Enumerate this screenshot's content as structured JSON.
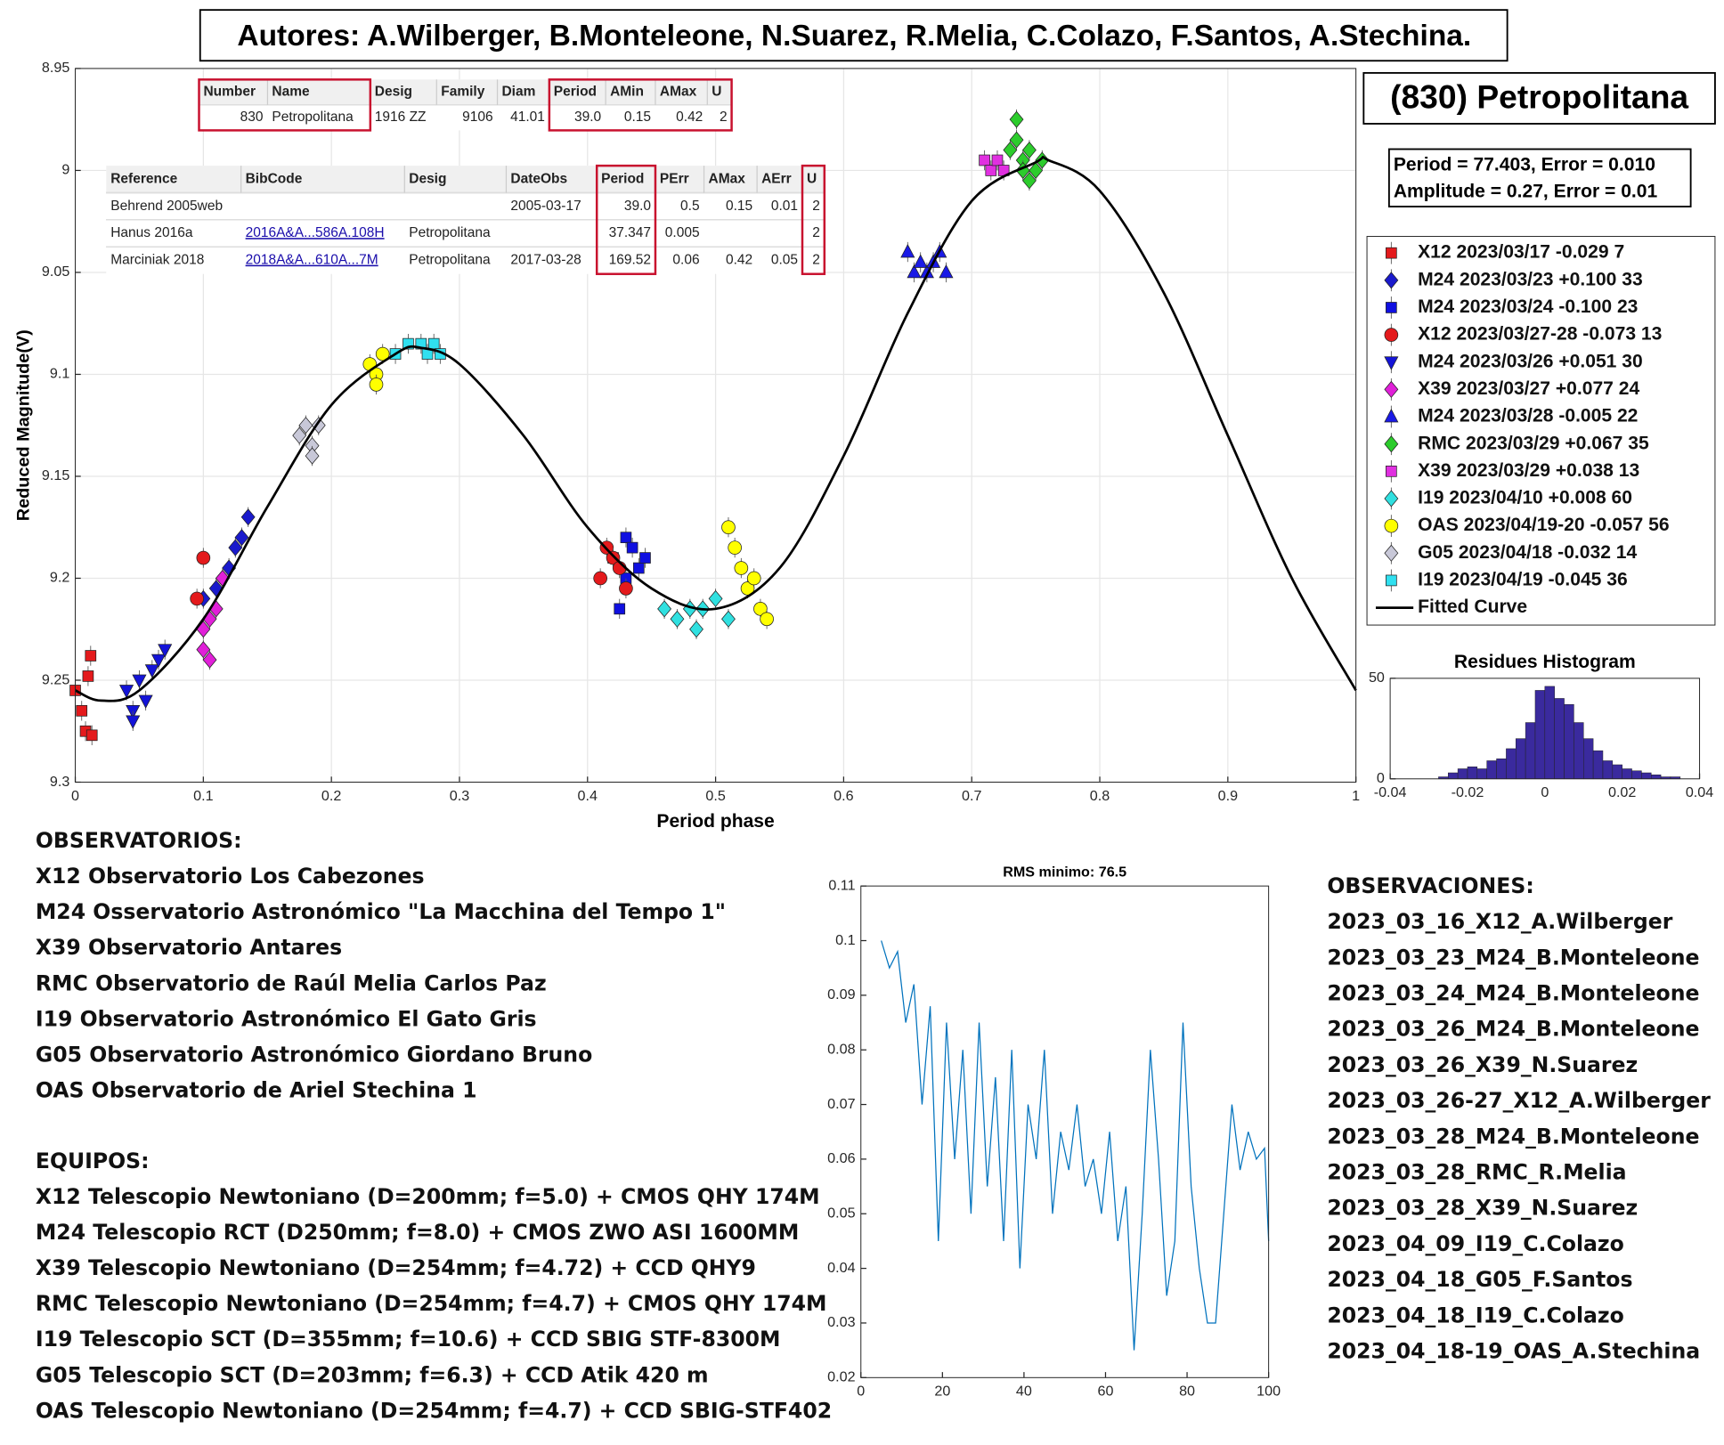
{
  "header": {
    "authors": "Autores: A.Wilberger, B.Monteleone, N.Suarez, R.Melia, C.Colazo, F.Santos, A.Stechina."
  },
  "object": {
    "name": "(830) Petropolitana",
    "fit": [
      "Period =  77.403, Error = 0.010",
      "Amplitude = 0.27, Error = 0.01"
    ]
  },
  "tables": [
    {
      "header": [
        "Number",
        "Name",
        "Desig",
        "Family",
        "Diam",
        "Period",
        "AMin",
        "AMax",
        "U"
      ],
      "rows": [
        [
          "830",
          "Petropolitana",
          "1916 ZZ",
          "9106",
          "41.01",
          "39.0",
          "0.15",
          "0.42",
          "2"
        ]
      ]
    },
    {
      "header": [
        "Reference",
        "BibCode",
        "Desig",
        "DateObs",
        "Period",
        "PErr",
        "AMax",
        "AErr",
        "U"
      ],
      "rows": [
        [
          "Behrend 2005web",
          "",
          "",
          "2005-03-17",
          "39.0",
          "0.5",
          "0.15",
          "0.01",
          "2"
        ],
        [
          "Hanus 2016a",
          "2016A&A...586A.108H",
          "Petropolitana",
          "",
          "37.347",
          "0.005",
          "",
          "",
          "2"
        ],
        [
          "Marciniak 2018",
          "2018A&A...610A...7M",
          "Petropolitana",
          "2017-03-28",
          "169.52",
          "0.06",
          "0.42",
          "0.05",
          "2"
        ]
      ]
    }
  ],
  "chart_data": [
    {
      "type": "scatter",
      "ylabel": "Reduced Magnitude(V)",
      "xlabel": "Period phase",
      "xlim": [
        0,
        1
      ],
      "ylim": [
        8.95,
        9.3
      ],
      "y_reversed": true,
      "grid": true,
      "legend": "right",
      "xticks": [
        0,
        0.1,
        0.2,
        0.3,
        0.4,
        0.5,
        0.6,
        0.7,
        0.8,
        0.9,
        1
      ],
      "yticks": [
        8.95,
        9,
        9.05,
        9.1,
        9.15,
        9.2,
        9.25,
        9.3
      ],
      "series": [
        {
          "name": "X12 2023/03/17 -0.029 7",
          "color": "#e41a1c",
          "marker": "s",
          "x": [
            0.0,
            0.005,
            0.008,
            0.01,
            0.012,
            0.013
          ],
          "values": [
            9.255,
            9.265,
            9.275,
            9.248,
            9.238,
            9.277
          ]
        },
        {
          "name": "M24 2023/03/23 +0.100 33",
          "color": "#1a1acc",
          "marker": "d",
          "x": [
            0.1,
            0.11,
            0.115,
            0.12,
            0.125,
            0.13,
            0.135
          ],
          "values": [
            9.21,
            9.205,
            9.2,
            9.195,
            9.185,
            9.18,
            9.17
          ]
        },
        {
          "name": "M24 2023/03/24 -0.100 23",
          "color": "#1010e0",
          "marker": "s",
          "x": [
            0.42,
            0.425,
            0.43,
            0.43,
            0.435,
            0.44,
            0.445
          ],
          "values": [
            9.19,
            9.215,
            9.2,
            9.18,
            9.185,
            9.195,
            9.19
          ]
        },
        {
          "name": "X12 2023/03/27-28 -0.073 13",
          "color": "#e41a1c",
          "marker": "o",
          "x": [
            0.095,
            0.1,
            0.41,
            0.415,
            0.42,
            0.425,
            0.43
          ],
          "values": [
            9.21,
            9.19,
            9.2,
            9.185,
            9.19,
            9.195,
            9.205
          ]
        },
        {
          "name": "M24 2023/03/26 +0.051 30",
          "color": "#1414d8",
          "marker": "v",
          "x": [
            0.04,
            0.045,
            0.045,
            0.05,
            0.055,
            0.06,
            0.065,
            0.07
          ],
          "values": [
            9.255,
            9.265,
            9.27,
            9.25,
            9.26,
            9.245,
            9.24,
            9.235
          ]
        },
        {
          "name": "X39 2023/03/27 +0.077 24",
          "color": "#e020d8",
          "marker": "d",
          "x": [
            0.1,
            0.1,
            0.105,
            0.105,
            0.11,
            0.115
          ],
          "values": [
            9.225,
            9.235,
            9.22,
            9.24,
            9.215,
            9.2
          ]
        },
        {
          "name": "M24 2023/03/28 -0.005 22",
          "color": "#1a1ae6",
          "marker": "^",
          "x": [
            0.65,
            0.655,
            0.66,
            0.665,
            0.67,
            0.675,
            0.68
          ],
          "values": [
            9.04,
            9.05,
            9.045,
            9.05,
            9.045,
            9.04,
            9.05
          ]
        },
        {
          "name": "RMC 2023/03/29 +0.067 35",
          "color": "#2ccc2c",
          "marker": "d",
          "x": [
            0.73,
            0.735,
            0.735,
            0.74,
            0.74,
            0.745,
            0.745,
            0.75,
            0.755
          ],
          "values": [
            8.99,
            8.985,
            8.975,
            8.995,
            9.0,
            8.99,
            9.005,
            9.0,
            8.995
          ]
        },
        {
          "name": "X39 2023/03/29 +0.038 13",
          "color": "#e030e0",
          "marker": "s",
          "x": [
            0.71,
            0.715,
            0.72,
            0.725
          ],
          "values": [
            8.995,
            9.0,
            8.995,
            9.0
          ]
        },
        {
          "name": "I19 2023/04/10 +0.008 60",
          "color": "#30e0e0",
          "marker": "d",
          "x": [
            0.46,
            0.47,
            0.48,
            0.485,
            0.49,
            0.5,
            0.51
          ],
          "values": [
            9.215,
            9.22,
            9.215,
            9.225,
            9.215,
            9.21,
            9.22
          ]
        },
        {
          "name": "OAS 2023/04/19-20 -0.057 56",
          "color": "#ffff00",
          "marker": "o",
          "x": [
            0.23,
            0.235,
            0.235,
            0.24,
            0.51,
            0.515,
            0.52,
            0.525,
            0.53,
            0.535,
            0.54
          ],
          "values": [
            9.095,
            9.1,
            9.105,
            9.09,
            9.175,
            9.185,
            9.195,
            9.205,
            9.2,
            9.215,
            9.22
          ]
        },
        {
          "name": "G05 2023/04/18 -0.032 14",
          "color": "#c8c8d8",
          "marker": "d",
          "x": [
            0.175,
            0.18,
            0.185,
            0.185,
            0.19
          ],
          "values": [
            9.13,
            9.125,
            9.135,
            9.14,
            9.125
          ]
        },
        {
          "name": "I19 2023/04/19 -0.045 36",
          "color": "#30e0f0",
          "marker": "s",
          "x": [
            0.25,
            0.26,
            0.27,
            0.275,
            0.28,
            0.285
          ],
          "values": [
            9.09,
            9.085,
            9.085,
            9.09,
            9.085,
            9.09
          ]
        },
        {
          "name": "Fitted Curve",
          "color": "#000000",
          "marker": "line",
          "x": [
            0,
            0.02,
            0.05,
            0.1,
            0.15,
            0.2,
            0.25,
            0.27,
            0.3,
            0.35,
            0.4,
            0.45,
            0.5,
            0.55,
            0.6,
            0.65,
            0.7,
            0.75,
            0.76,
            0.8,
            0.85,
            0.9,
            0.95,
            1
          ],
          "values": [
            9.255,
            9.26,
            9.255,
            9.22,
            9.165,
            9.115,
            9.09,
            9.087,
            9.095,
            9.13,
            9.175,
            9.205,
            9.215,
            9.195,
            9.14,
            9.07,
            9.015,
            8.996,
            8.995,
            9.01,
            9.06,
            9.13,
            9.2,
            9.255
          ]
        }
      ]
    },
    {
      "type": "histogram",
      "title": "Residues Histogram",
      "color": "#3a2a9e",
      "bins": [
        -0.0275,
        -0.025,
        -0.0225,
        -0.02,
        -0.0175,
        -0.015,
        -0.0125,
        -0.01,
        -0.0075,
        -0.005,
        -0.0025,
        0,
        0.0025,
        0.005,
        0.0075,
        0.01,
        0.0125,
        0.015,
        0.0175,
        0.02,
        0.0225,
        0.025,
        0.0275,
        0.03,
        0.0325,
        0.035
      ],
      "values": [
        1,
        3,
        5,
        6,
        5,
        9,
        10,
        15,
        20,
        28,
        44,
        46,
        40,
        37,
        28,
        20,
        14,
        9,
        7,
        5,
        4,
        3,
        2,
        1,
        1
      ],
      "xlim": [
        -0.04,
        0.04
      ],
      "ylim": [
        0,
        50
      ],
      "xticks": [
        -0.04,
        -0.02,
        0,
        0.02,
        0.04
      ],
      "yticks": [
        0,
        50
      ],
      "grid": false
    },
    {
      "type": "line",
      "title": "RMS minimo: 76.5",
      "color": "#0072bd",
      "grid": false,
      "x": [
        5,
        7,
        9,
        11,
        13,
        15,
        17,
        19,
        21,
        23,
        25,
        27,
        29,
        31,
        33,
        35,
        37,
        39,
        41,
        43,
        45,
        47,
        49,
        51,
        53,
        55,
        57,
        59,
        61,
        63,
        65,
        67,
        69,
        71,
        73,
        75,
        77,
        79,
        81,
        83,
        85,
        87,
        89,
        91,
        93,
        95,
        97,
        99,
        100
      ],
      "values": [
        0.1,
        0.095,
        0.098,
        0.085,
        0.092,
        0.07,
        0.088,
        0.045,
        0.085,
        0.06,
        0.08,
        0.05,
        0.085,
        0.055,
        0.075,
        0.045,
        0.08,
        0.04,
        0.07,
        0.06,
        0.08,
        0.05,
        0.065,
        0.058,
        0.07,
        0.055,
        0.06,
        0.05,
        0.065,
        0.045,
        0.055,
        0.025,
        0.05,
        0.08,
        0.06,
        0.035,
        0.045,
        0.085,
        0.055,
        0.04,
        0.03,
        0.03,
        0.05,
        0.07,
        0.058,
        0.065,
        0.06,
        0.062,
        0.045
      ],
      "xlim": [
        0,
        100
      ],
      "ylim": [
        0.02,
        0.11
      ],
      "xticks": [
        0,
        20,
        40,
        60,
        80,
        100
      ],
      "yticks": [
        0.02,
        0.03,
        0.04,
        0.05,
        0.06,
        0.07,
        0.08,
        0.09,
        0.1,
        0.11
      ]
    }
  ],
  "observatorios": {
    "heading": "OBSERVATORIOS:",
    "lines": [
      "X12 Observatorio Los Cabezones",
      "M24 Osservatorio Astronómico \"La Macchina del Tempo 1\"",
      "X39 Observatorio Antares",
      "RMC Observatorio de Raúl Melia Carlos Paz",
      "I19 Observatorio Astronómico El Gato Gris",
      "G05 Observatorio Astronómico Giordano Bruno",
      "OAS Observatorio de Ariel Stechina 1"
    ]
  },
  "equipos": {
    "heading": "EQUIPOS:",
    "lines": [
      "X12 Telescopio Newtoniano (D=200mm; f=5.0) + CMOS QHY 174M",
      "M24 Telescopio RCT (D250mm; f=8.0) + CMOS ZWO ASI 1600MM",
      "X39 Telescopio Newtoniano (D=254mm; f=4.72) + CCD QHY9",
      "RMC Telescopio Newtoniano (D=254mm; f=4.7) + CMOS QHY 174M",
      "I19 Telescopio SCT (D=355mm; f=10.6) + CCD SBIG STF-8300M",
      "G05 Telescopio SCT (D=203mm; f=6.3) + CCD Atik 420 m",
      "OAS Telescopio Newtoniano (D=254mm; f=4.7) + CCD SBIG-STF402"
    ]
  },
  "observaciones": {
    "heading": "OBSERVACIONES:",
    "lines": [
      "2023_03_16_X12_A.Wilberger",
      "2023_03_23_M24_B.Monteleone",
      "2023_03_24_M24_B.Monteleone",
      "2023_03_26_M24_B.Monteleone",
      "2023_03_26_X39_N.Suarez",
      "2023_03_26-27_X12_A.Wilberger",
      "2023_03_28_M24_B.Monteleone",
      "2023_03_28_RMC_R.Melia",
      "2023_03_28_X39_N.Suarez",
      "2023_04_09_I19_C.Colazo",
      "2023_04_18_G05_F.Santos",
      "2023_04_18_I19_C.Colazo",
      "2023_04_18-19_OAS_A.Stechina"
    ]
  }
}
